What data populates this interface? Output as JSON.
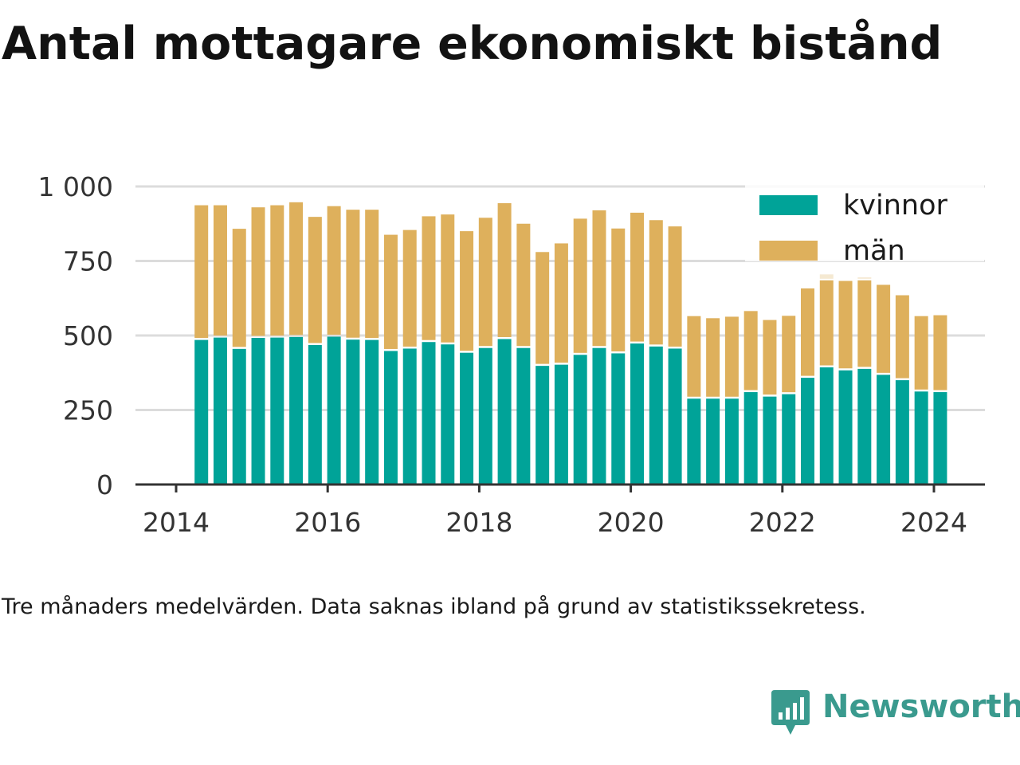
{
  "title": "Antal mottagare ekonomiskt bistånd",
  "footnote": "Tre månaders medelvärden. Data saknas ibland på grund av statistikssekretess.",
  "brand": {
    "name": "Newsworthy",
    "icon": "newsworthy-logo-icon",
    "color": "#3a9a8e"
  },
  "chart_data": {
    "type": "bar",
    "stacked": true,
    "x_type": "date",
    "x": [
      "2014-05",
      "2014-08",
      "2014-11",
      "2015-02",
      "2015-05",
      "2015-08",
      "2015-11",
      "2016-02",
      "2016-05",
      "2016-08",
      "2016-11",
      "2017-02",
      "2017-05",
      "2017-08",
      "2017-11",
      "2018-02",
      "2018-05",
      "2018-08",
      "2018-11",
      "2019-02",
      "2019-05",
      "2019-08",
      "2019-11",
      "2020-02",
      "2020-05",
      "2020-08",
      "2020-11",
      "2021-02",
      "2021-05",
      "2021-08",
      "2021-11",
      "2022-02",
      "2022-05",
      "2022-08",
      "2022-11",
      "2023-02",
      "2023-05",
      "2023-08",
      "2023-11",
      "2024-02"
    ],
    "series": [
      {
        "name": "kvinnor",
        "color": "#00a398",
        "values": [
          485,
          493,
          455,
          492,
          493,
          495,
          468,
          496,
          486,
          485,
          448,
          456,
          478,
          470,
          442,
          458,
          488,
          458,
          398,
          402,
          435,
          458,
          440,
          473,
          463,
          456,
          288,
          288,
          288,
          310,
          295,
          303,
          358,
          393,
          383,
          388,
          368,
          350,
          312,
          310
        ]
      },
      {
        "name": "män",
        "color": "#deb05c",
        "values": [
          452,
          444,
          403,
          438,
          444,
          452,
          430,
          438,
          436,
          437,
          390,
          398,
          422,
          436,
          408,
          437,
          456,
          417,
          382,
          407,
          457,
          462,
          419,
          439,
          424,
          410,
          277,
          270,
          275,
          272,
          257,
          263,
          300,
          292,
          300,
          297,
          302,
          285,
          253,
          258
        ]
      }
    ],
    "extra_segments": [
      {
        "x": "2022-08",
        "value": 20,
        "color": "#f5e9d2"
      },
      {
        "x": "2023-02",
        "value": 10,
        "color": "#f5e9d2"
      }
    ],
    "ylim": [
      0,
      1000
    ],
    "y_ticks": [
      {
        "value": 0,
        "label": "0"
      },
      {
        "value": 250,
        "label": "250"
      },
      {
        "value": 500,
        "label": "500"
      },
      {
        "value": 750,
        "label": "750"
      },
      {
        "value": 1000,
        "label": "1 000"
      }
    ],
    "x_ticks": [
      {
        "value": "2014-01",
        "label": "2014"
      },
      {
        "value": "2016-01",
        "label": "2016"
      },
      {
        "value": "2018-01",
        "label": "2018"
      },
      {
        "value": "2020-01",
        "label": "2020"
      },
      {
        "value": "2022-01",
        "label": "2022"
      },
      {
        "value": "2024-01",
        "label": "2024"
      }
    ],
    "grid": true,
    "legend_position": "top-right"
  }
}
